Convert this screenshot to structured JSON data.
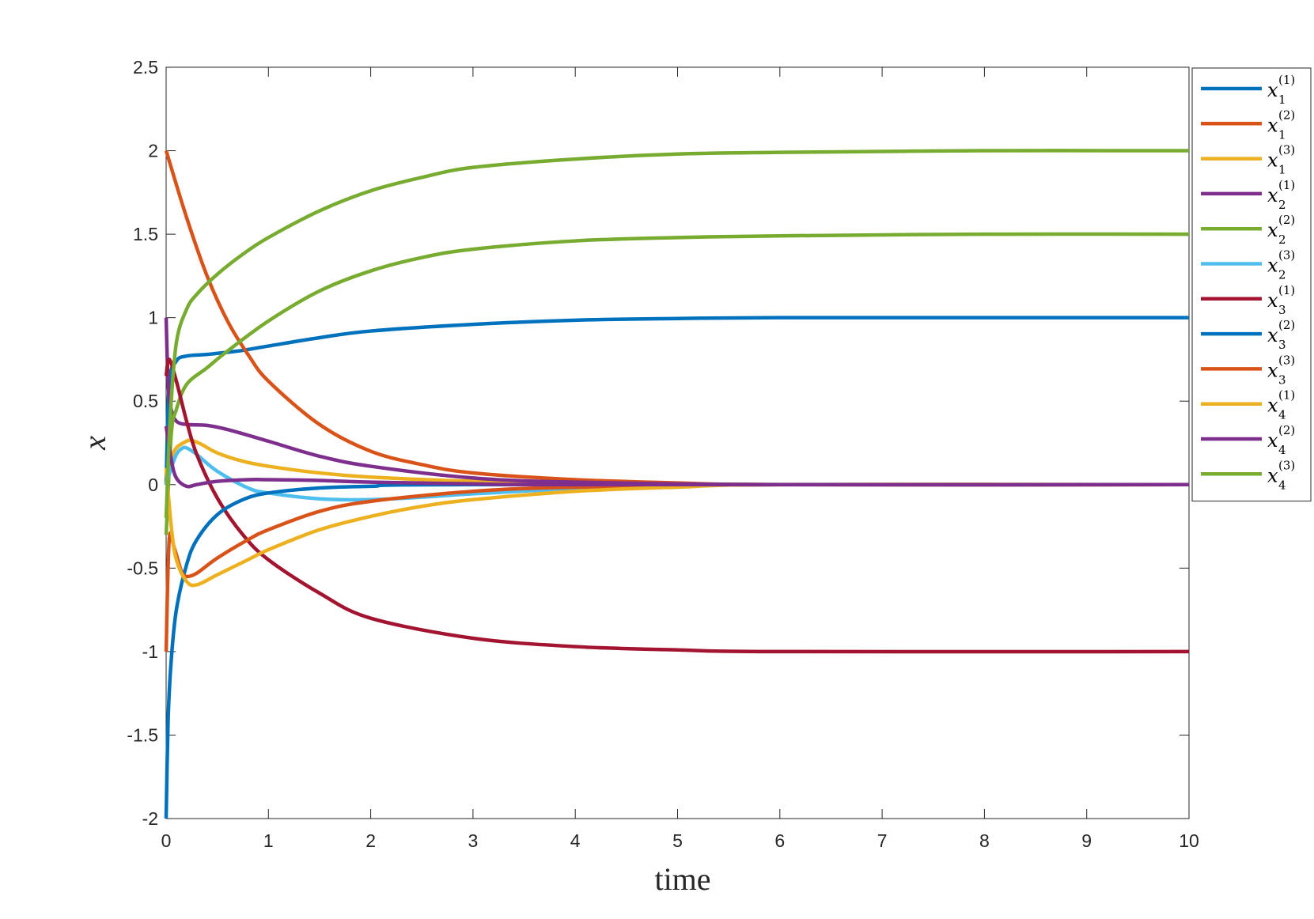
{
  "chart_data": {
    "type": "line",
    "xlabel": "time",
    "ylabel": "x",
    "xlim": [
      0,
      10
    ],
    "ylim": [
      -2,
      2.5
    ],
    "xticks": [
      "0",
      "1",
      "2",
      "3",
      "4",
      "5",
      "6",
      "7",
      "8",
      "9",
      "10"
    ],
    "yticks": [
      "-2",
      "-1.5",
      "-1",
      "-0.5",
      "0",
      "0.5",
      "1",
      "1.5",
      "2",
      "2.5"
    ],
    "grid": false,
    "legend_position": "outside-right-top",
    "series": [
      {
        "name": "x_1^(1)",
        "sub": "1",
        "sup": "(1)",
        "color": "#0072BD",
        "points": [
          [
            0,
            0
          ],
          [
            0.03,
            0.6
          ],
          [
            0.1,
            0.74
          ],
          [
            0.2,
            0.77
          ],
          [
            0.4,
            0.78
          ],
          [
            0.7,
            0.8
          ],
          [
            1,
            0.83
          ],
          [
            1.5,
            0.88
          ],
          [
            2,
            0.92
          ],
          [
            3,
            0.96
          ],
          [
            4,
            0.985
          ],
          [
            5,
            0.995
          ],
          [
            6,
            1.0
          ],
          [
            8,
            1.0
          ],
          [
            10,
            1.0
          ]
        ]
      },
      {
        "name": "x_1^(2)",
        "sub": "1",
        "sup": "(2)",
        "color": "#D95319",
        "points": [
          [
            0,
            2.0
          ],
          [
            0.2,
            1.6
          ],
          [
            0.4,
            1.25
          ],
          [
            0.6,
            0.98
          ],
          [
            0.8,
            0.78
          ],
          [
            1,
            0.62
          ],
          [
            1.5,
            0.36
          ],
          [
            2,
            0.2
          ],
          [
            2.5,
            0.12
          ],
          [
            3,
            0.07
          ],
          [
            4,
            0.03
          ],
          [
            5,
            0.01
          ],
          [
            6,
            0.0
          ],
          [
            10,
            0.0
          ]
        ]
      },
      {
        "name": "x_1^(3)",
        "sub": "1",
        "sup": "(3)",
        "color": "#EDB120",
        "points": [
          [
            0,
            0
          ],
          [
            0.05,
            0.15
          ],
          [
            0.1,
            0.22
          ],
          [
            0.2,
            0.26
          ],
          [
            0.25,
            0.265
          ],
          [
            0.35,
            0.24
          ],
          [
            0.5,
            0.19
          ],
          [
            0.75,
            0.14
          ],
          [
            1,
            0.11
          ],
          [
            1.5,
            0.07
          ],
          [
            2,
            0.045
          ],
          [
            3,
            0.02
          ],
          [
            4,
            0.008
          ],
          [
            6,
            0.0
          ],
          [
            10,
            0.0
          ]
        ]
      },
      {
        "name": "x_2^(1)",
        "sub": "2",
        "sup": "(1)",
        "color": "#7E2F8E",
        "points": [
          [
            0,
            1.0
          ],
          [
            0.02,
            0.6
          ],
          [
            0.05,
            0.45
          ],
          [
            0.1,
            0.38
          ],
          [
            0.2,
            0.36
          ],
          [
            0.4,
            0.355
          ],
          [
            0.6,
            0.33
          ],
          [
            1,
            0.26
          ],
          [
            1.5,
            0.17
          ],
          [
            2,
            0.11
          ],
          [
            3,
            0.04
          ],
          [
            4,
            0.015
          ],
          [
            6,
            0.0
          ],
          [
            10,
            0.0
          ]
        ]
      },
      {
        "name": "x_2^(2)",
        "sub": "2",
        "sup": "(2)",
        "color": "#77AC30",
        "points": [
          [
            0,
            -0.3
          ],
          [
            0.05,
            0.3
          ],
          [
            0.1,
            0.45
          ],
          [
            0.2,
            0.6
          ],
          [
            0.4,
            0.7
          ],
          [
            0.6,
            0.8
          ],
          [
            1,
            0.98
          ],
          [
            1.5,
            1.16
          ],
          [
            2,
            1.28
          ],
          [
            2.5,
            1.36
          ],
          [
            3,
            1.41
          ],
          [
            4,
            1.46
          ],
          [
            5,
            1.48
          ],
          [
            6,
            1.49
          ],
          [
            8,
            1.5
          ],
          [
            10,
            1.5
          ]
        ]
      },
      {
        "name": "x_2^(3)",
        "sub": "2",
        "sup": "(3)",
        "color": "#4DBEEE",
        "points": [
          [
            0,
            0
          ],
          [
            0.05,
            0.1
          ],
          [
            0.1,
            0.18
          ],
          [
            0.15,
            0.215
          ],
          [
            0.2,
            0.22
          ],
          [
            0.3,
            0.18
          ],
          [
            0.5,
            0.08
          ],
          [
            0.8,
            -0.02
          ],
          [
            1,
            -0.05
          ],
          [
            1.5,
            -0.085
          ],
          [
            2,
            -0.09
          ],
          [
            2.5,
            -0.075
          ],
          [
            3,
            -0.055
          ],
          [
            4,
            -0.025
          ],
          [
            5,
            -0.01
          ],
          [
            6,
            0.0
          ],
          [
            10,
            0.0
          ]
        ]
      },
      {
        "name": "x_3^(1)",
        "sub": "3",
        "sup": "(1)",
        "color": "#A2142F",
        "points": [
          [
            0,
            0.65
          ],
          [
            0.03,
            0.75
          ],
          [
            0.1,
            0.62
          ],
          [
            0.2,
            0.38
          ],
          [
            0.3,
            0.18
          ],
          [
            0.5,
            -0.08
          ],
          [
            0.75,
            -0.3
          ],
          [
            1,
            -0.45
          ],
          [
            1.5,
            -0.65
          ],
          [
            2,
            -0.8
          ],
          [
            3,
            -0.92
          ],
          [
            4,
            -0.97
          ],
          [
            5,
            -0.99
          ],
          [
            6,
            -1.0
          ],
          [
            10,
            -1.0
          ]
        ]
      },
      {
        "name": "x_3^(2)",
        "sub": "3",
        "sup": "(2)",
        "color": "#0072BD",
        "points": [
          [
            0,
            -2.0
          ],
          [
            0.02,
            -1.4
          ],
          [
            0.05,
            -1.05
          ],
          [
            0.1,
            -0.75
          ],
          [
            0.2,
            -0.48
          ],
          [
            0.3,
            -0.33
          ],
          [
            0.5,
            -0.18
          ],
          [
            0.75,
            -0.09
          ],
          [
            1,
            -0.05
          ],
          [
            1.5,
            -0.02
          ],
          [
            2,
            -0.01
          ],
          [
            3,
            0.0
          ],
          [
            10,
            0.0
          ]
        ]
      },
      {
        "name": "x_3^(3)",
        "sub": "3",
        "sup": "(3)",
        "color": "#D95319",
        "points": [
          [
            0,
            -1.0
          ],
          [
            0.03,
            -0.33
          ],
          [
            0.08,
            -0.38
          ],
          [
            0.15,
            -0.52
          ],
          [
            0.2,
            -0.55
          ],
          [
            0.3,
            -0.53
          ],
          [
            0.5,
            -0.44
          ],
          [
            0.8,
            -0.33
          ],
          [
            1,
            -0.27
          ],
          [
            1.5,
            -0.16
          ],
          [
            2,
            -0.1
          ],
          [
            3,
            -0.04
          ],
          [
            4,
            -0.015
          ],
          [
            6,
            0.0
          ],
          [
            10,
            0.0
          ]
        ]
      },
      {
        "name": "x_4^(1)",
        "sub": "4",
        "sup": "(1)",
        "color": "#EDB120",
        "points": [
          [
            0,
            0.1
          ],
          [
            0.05,
            -0.25
          ],
          [
            0.1,
            -0.45
          ],
          [
            0.2,
            -0.58
          ],
          [
            0.3,
            -0.6
          ],
          [
            0.5,
            -0.54
          ],
          [
            0.8,
            -0.45
          ],
          [
            1,
            -0.39
          ],
          [
            1.5,
            -0.27
          ],
          [
            2,
            -0.19
          ],
          [
            2.5,
            -0.13
          ],
          [
            3,
            -0.09
          ],
          [
            4,
            -0.04
          ],
          [
            5,
            -0.015
          ],
          [
            6,
            0.0
          ],
          [
            10,
            0.0
          ]
        ]
      },
      {
        "name": "x_4^(2)",
        "sub": "4",
        "sup": "(2)",
        "color": "#7E2F8E",
        "points": [
          [
            0,
            0.35
          ],
          [
            0.05,
            0.15
          ],
          [
            0.1,
            0.04
          ],
          [
            0.2,
            -0.01
          ],
          [
            0.3,
            0.0
          ],
          [
            0.5,
            0.02
          ],
          [
            0.8,
            0.03
          ],
          [
            1,
            0.03
          ],
          [
            1.5,
            0.025
          ],
          [
            2,
            0.015
          ],
          [
            3,
            0.005
          ],
          [
            4,
            0.0
          ],
          [
            10,
            0.0
          ]
        ]
      },
      {
        "name": "x_4^(3)",
        "sub": "4",
        "sup": "(3)",
        "color": "#77AC30",
        "points": [
          [
            0,
            -0.2
          ],
          [
            0.04,
            0.4
          ],
          [
            0.1,
            0.85
          ],
          [
            0.2,
            1.05
          ],
          [
            0.3,
            1.14
          ],
          [
            0.5,
            1.26
          ],
          [
            0.75,
            1.38
          ],
          [
            1,
            1.48
          ],
          [
            1.5,
            1.64
          ],
          [
            2,
            1.76
          ],
          [
            2.5,
            1.84
          ],
          [
            3,
            1.9
          ],
          [
            4,
            1.95
          ],
          [
            5,
            1.98
          ],
          [
            6,
            1.99
          ],
          [
            8,
            2.0
          ],
          [
            10,
            2.0
          ]
        ]
      }
    ]
  }
}
